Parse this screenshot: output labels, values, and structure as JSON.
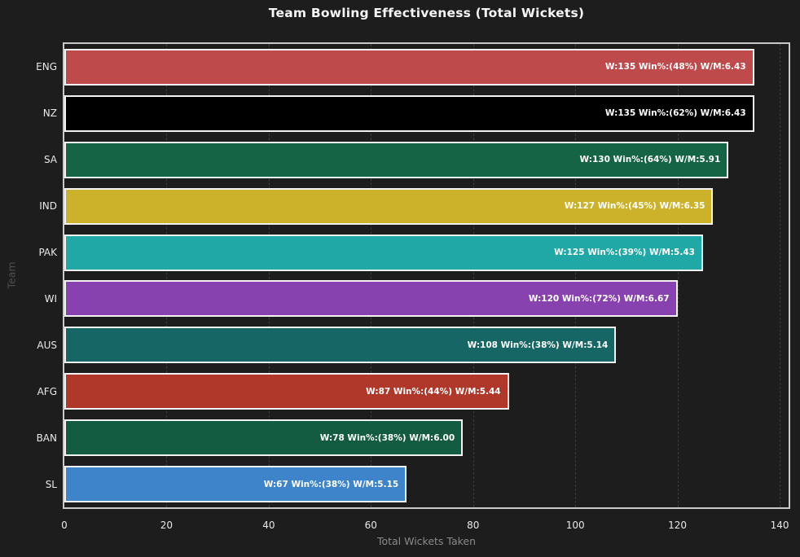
{
  "title": "Team Bowling Effectiveness (Total Wickets)",
  "chart_data": {
    "type": "bar",
    "orientation": "horizontal",
    "title": "Team Bowling Effectiveness (Total Wickets)",
    "xlabel": "Total Wickets Taken",
    "ylabel": "Team",
    "xlim": [
      0,
      141.75
    ],
    "xticks": [
      0,
      20,
      40,
      60,
      80,
      100,
      120,
      140
    ],
    "grid": "vertical dashed gridlines at x ticks",
    "legend": "none",
    "categories": [
      "ENG",
      "NZ",
      "SA",
      "IND",
      "PAK",
      "WI",
      "AUS",
      "AFG",
      "BAN",
      "SL"
    ],
    "values": [
      135,
      135,
      130,
      127,
      125,
      120,
      108,
      87,
      78,
      67
    ],
    "win_pct": [
      48,
      62,
      64,
      45,
      39,
      72,
      38,
      44,
      38,
      38
    ],
    "wickets_per_match": [
      "6.43",
      "6.43",
      "5.91",
      "6.35",
      "5.43",
      "6.67",
      "5.14",
      "5.44",
      "6.00",
      "5.15"
    ],
    "bar_labels": [
      "W:135 Win%:(48%) W/M:6.43",
      "W:135 Win%:(62%) W/M:6.43",
      "W:130 Win%:(64%) W/M:5.91",
      "W:127 Win%:(45%) W/M:6.35",
      "W:125 Win%:(39%) W/M:5.43",
      "W:120 Win%:(72%) W/M:6.67",
      "W:108 Win%:(38%) W/M:5.14",
      "W:87 Win%:(44%) W/M:5.44",
      "W:78 Win%:(38%) W/M:6.00",
      "W:67 Win%:(38%) W/M:5.15"
    ],
    "bar_colors": [
      "#be4a4c",
      "#000000",
      "#156445",
      "#ccb22a",
      "#20a8a6",
      "#8742b0",
      "#166666",
      "#af382b",
      "#135c41",
      "#3d84ca"
    ]
  },
  "theme": {
    "background": "#1d1d1d",
    "spine_color": "#c9c9c9",
    "grid_color": "#3a3a3a",
    "tick_label_color": "#e8e8e8",
    "xlabel_color": "#8a8a8a",
    "ylabel_color": "#4f4f4f",
    "bar_border_color": "#f2f2f2",
    "bar_label_color": "#ffffff",
    "title_color": "#f5f5f5"
  }
}
